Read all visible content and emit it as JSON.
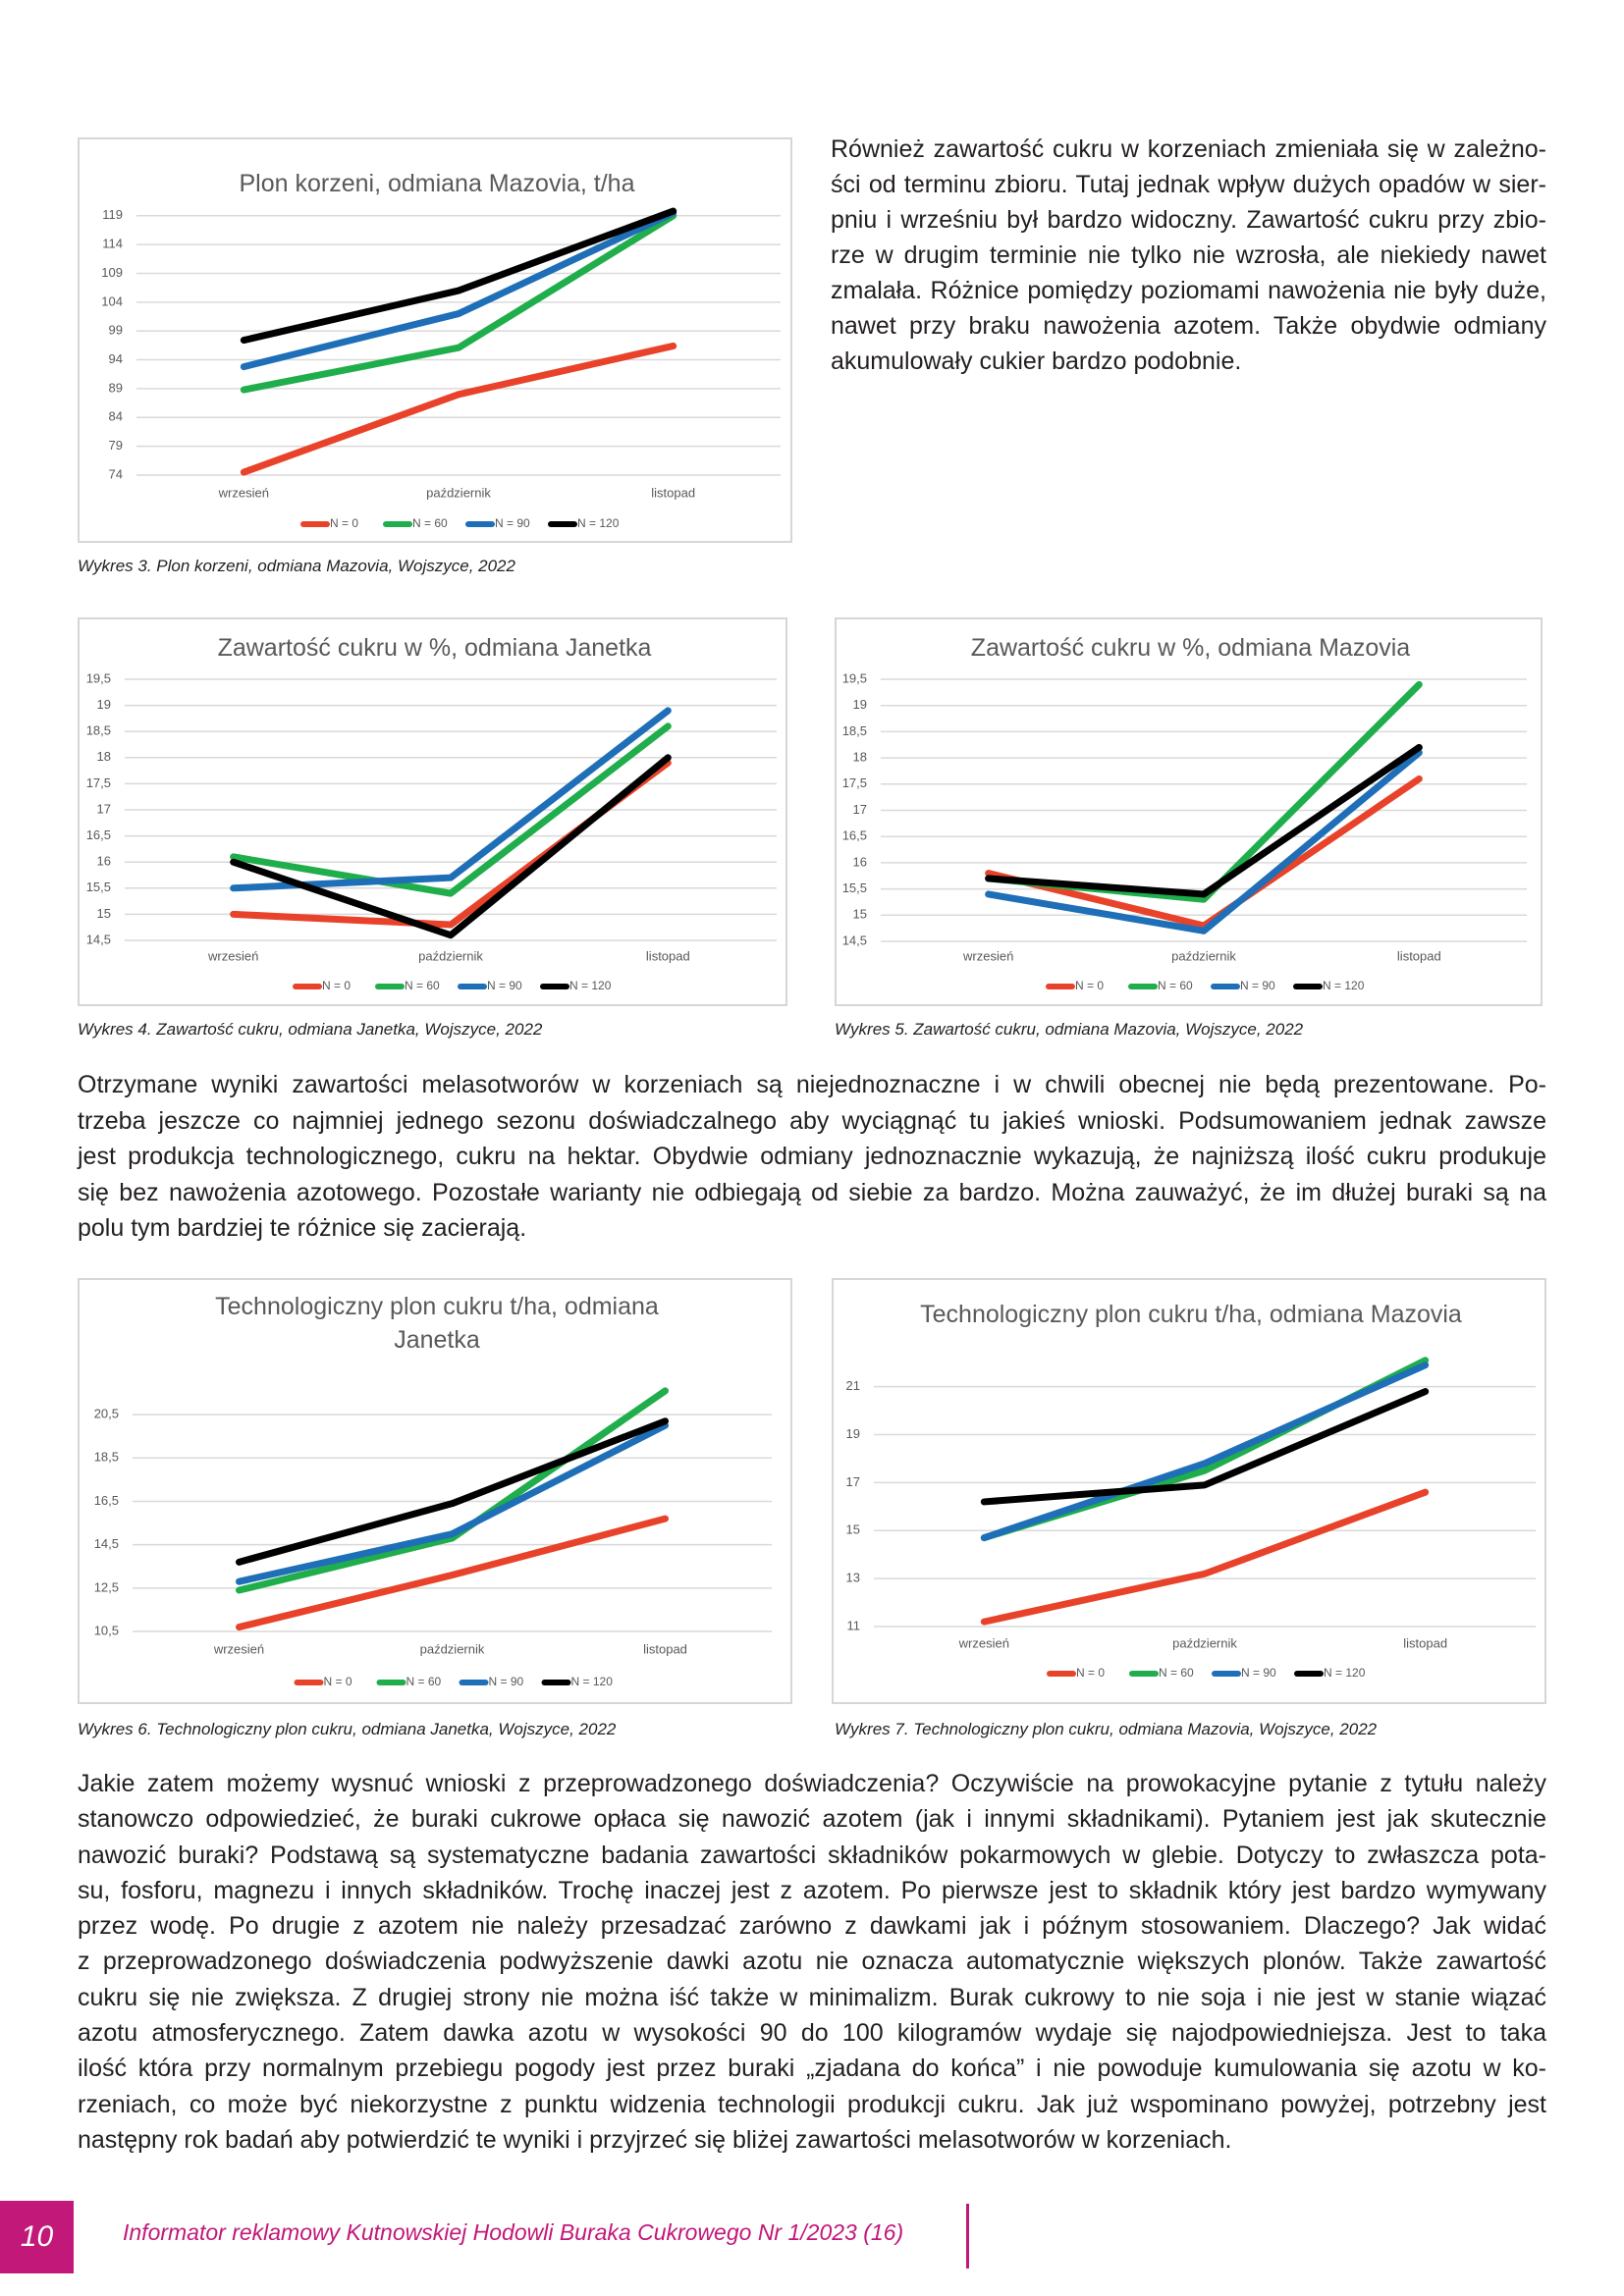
{
  "chart_data": [
    {
      "type": "line",
      "title": "Plon korzeni, odmiana Mazovia, t/ha",
      "categories": [
        "wrzesień",
        "październik",
        "listopad"
      ],
      "series": [
        {
          "name": "N = 0",
          "color": "#e8432a",
          "values": [
            74.5,
            88,
            96.4
          ]
        },
        {
          "name": "N = 60",
          "color": "#1fae4b",
          "values": [
            88.8,
            96.1,
            119
          ]
        },
        {
          "name": "N = 90",
          "color": "#1e6fb8",
          "values": [
            92.8,
            102,
            119.5
          ]
        },
        {
          "name": "N = 120",
          "color": "#000000",
          "values": [
            97.4,
            106,
            119.8
          ]
        }
      ],
      "ylim": [
        74,
        121
      ],
      "yticks": [
        74,
        79,
        84,
        89,
        94,
        99,
        104,
        109,
        114,
        119
      ],
      "grid": true,
      "legend": "bottom"
    },
    {
      "type": "line",
      "title": "Zawartość cukru w %, odmiana Janetka",
      "categories": [
        "wrzesień",
        "październik",
        "listopad"
      ],
      "series": [
        {
          "name": "N = 0",
          "color": "#e8432a",
          "values": [
            15.0,
            14.8,
            17.9
          ]
        },
        {
          "name": "N = 60",
          "color": "#1fae4b",
          "values": [
            16.1,
            15.4,
            18.6
          ]
        },
        {
          "name": "N = 90",
          "color": "#1e6fb8",
          "values": [
            15.5,
            15.7,
            18.9
          ]
        },
        {
          "name": "N = 120",
          "color": "#000000",
          "values": [
            16.0,
            14.6,
            18.0
          ]
        }
      ],
      "ylim": [
        14.5,
        19.5
      ],
      "yticks": [
        {
          "value": 14.5,
          "label": "14,5"
        },
        15,
        {
          "value": 15.5,
          "label": "15,5"
        },
        16,
        {
          "value": 16.5,
          "label": "16,5"
        },
        17,
        {
          "value": 17.5,
          "label": "17,5"
        },
        18,
        {
          "value": 18.5,
          "label": "18,5"
        },
        19,
        {
          "value": 19.5,
          "label": "19,5"
        }
      ],
      "grid": true,
      "legend": "bottom"
    },
    {
      "type": "line",
      "title": "Zawartość cukru w %, odmiana Mazovia",
      "categories": [
        "wrzesień",
        "październik",
        "listopad"
      ],
      "series": [
        {
          "name": "N = 0",
          "color": "#e8432a",
          "values": [
            15.8,
            14.8,
            17.6
          ]
        },
        {
          "name": "N = 60",
          "color": "#1fae4b",
          "values": [
            15.7,
            15.3,
            19.4
          ]
        },
        {
          "name": "N = 90",
          "color": "#1e6fb8",
          "values": [
            15.4,
            14.7,
            18.1
          ]
        },
        {
          "name": "N = 120",
          "color": "#000000",
          "values": [
            15.7,
            15.4,
            18.2
          ]
        }
      ],
      "ylim": [
        14.5,
        19.5
      ],
      "yticks": [
        {
          "value": 14.5,
          "label": "14,5"
        },
        15,
        {
          "value": 15.5,
          "label": "15,5"
        },
        16,
        {
          "value": 16.5,
          "label": "16,5"
        },
        17,
        {
          "value": 17.5,
          "label": "17,5"
        },
        18,
        {
          "value": 18.5,
          "label": "18,5"
        },
        19,
        {
          "value": 19.5,
          "label": "19,5"
        }
      ],
      "grid": true,
      "legend": "bottom"
    },
    {
      "type": "line",
      "title": "Technologiczny plon cukru t/ha, odmiana Janetka",
      "categories": [
        "wrzesień",
        "październik",
        "listopad"
      ],
      "series": [
        {
          "name": "N = 0",
          "color": "#e8432a",
          "values": [
            10.7,
            13.1,
            15.7
          ]
        },
        {
          "name": "N = 60",
          "color": "#1fae4b",
          "values": [
            12.4,
            14.8,
            21.6
          ]
        },
        {
          "name": "N = 90",
          "color": "#1e6fb8",
          "values": [
            12.8,
            15.0,
            20.0
          ]
        },
        {
          "name": "N = 120",
          "color": "#000000",
          "values": [
            13.7,
            16.4,
            20.2
          ]
        }
      ],
      "ylim": [
        10.5,
        22
      ],
      "yticks": [
        {
          "value": 10.5,
          "label": "10,5"
        },
        {
          "value": 12.5,
          "label": "12,5"
        },
        {
          "value": 14.5,
          "label": "14,5"
        },
        {
          "value": 16.5,
          "label": "16,5"
        },
        {
          "value": 18.5,
          "label": "18,5"
        },
        {
          "value": 20.5,
          "label": "20,5"
        }
      ],
      "grid": true,
      "legend": "bottom"
    },
    {
      "type": "line",
      "title": "Technologiczny plon cukru t/ha, odmiana Mazovia",
      "categories": [
        "wrzesień",
        "październik",
        "listopad"
      ],
      "series": [
        {
          "name": "N = 0",
          "color": "#e8432a",
          "values": [
            11.2,
            13.2,
            16.6
          ]
        },
        {
          "name": "N = 60",
          "color": "#1fae4b",
          "values": [
            14.7,
            17.5,
            22.1
          ]
        },
        {
          "name": "N = 90",
          "color": "#1e6fb8",
          "values": [
            14.7,
            17.8,
            21.9
          ]
        },
        {
          "name": "N = 120",
          "color": "#000000",
          "values": [
            16.2,
            16.9,
            20.8
          ]
        }
      ],
      "ylim": [
        11,
        22.5
      ],
      "yticks": [
        11,
        13,
        15,
        17,
        19,
        21
      ],
      "grid": true,
      "legend": "bottom"
    }
  ],
  "captions": [
    "Wykres 3. Plon korzeni, odmiana Mazovia, Wojszyce, 2022",
    "Wykres 4. Zawartość cukru, odmiana Janetka, Wojszyce, 2022",
    "Wykres 5. Zawartość cukru, odmiana Mazovia, Wojszyce, 2022",
    "Wykres 6. Technologiczny plon cukru, odmiana Janetka, Wojszyce, 2022",
    "Wykres 7. Technologiczny plon cukru, odmiana Mazovia, Wojszyce, 2022"
  ],
  "paragraphs": [
    {
      "lines": [
        "Również zawartość cukru w korzeniach zmieniała się w zależno-",
        "ści od terminu zbioru. Tutaj jednak wpływ dużych opadów w sier-",
        "pniu i wrześniu był bardzo widoczny. Zawartość cukru przy zbio-",
        "rze w drugim terminie nie tylko nie wzrosła, ale niekiedy nawet",
        "zmalała. Różnice pomiędzy poziomami nawożenia nie były duże,",
        "nawet przy braku nawożenia azotem. Także obydwie odmiany",
        "akumulowały cukier bardzo podobnie."
      ]
    },
    {
      "lines": [
        "Otrzymane wyniki zawartości melasotworów w korzeniach są niejednoznaczne i w chwili obecnej nie będą prezentowane. Po-",
        "trzeba jeszcze co najmniej jednego sezonu doświadczalnego aby wyciągnąć tu jakieś wnioski. Podsumowaniem jednak zawsze",
        "jest produkcja technologicznego, cukru na hektar. Obydwie odmiany jednoznacznie wykazują, że najniższą ilość cukru produkuje",
        "się bez nawożenia azotowego. Pozostałe warianty nie odbiegają od siebie za bardzo. Można zauważyć, że im dłużej buraki są na",
        "polu tym bardziej te różnice się zacierają."
      ]
    },
    {
      "lines": [
        "Jakie zatem możemy wysnuć wnioski z przeprowadzonego doświadczenia? Oczywiście na prowokacyjne pytanie z tytułu należy",
        "stanowczo odpowiedzieć, że buraki cukrowe opłaca się nawozić azotem (jak i innymi składnikami). Pytaniem jest jak skutecznie",
        "nawozić buraki? Podstawą są systematyczne badania zawartości składników pokarmowych w glebie. Dotyczy to zwłaszcza pota-",
        "su, fosforu, magnezu i innych składników. Trochę inaczej jest z azotem. Po pierwsze jest to składnik który jest bardzo wymywany",
        "przez wodę. Po drugie z azotem nie należy przesadzać zarówno z dawkami jak i późnym stosowaniem. Dlaczego? Jak widać",
        "z przeprowadzonego doświadczenia podwyższenie dawki azotu nie oznacza automatycznie większych plonów. Także zawartość",
        "cukru się nie zwiększa. Z drugiej strony nie można iść także w minimalizm. Burak cukrowy to nie soja i nie jest w stanie wiązać",
        "azotu atmosferycznego. Zatem dawka azotu w wysokości 90 do 100 kilogramów wydaje się najodpowiedniejsza. Jest to taka",
        "ilość która przy normalnym przebiegu pogody jest przez buraki „zjadana do końca” i nie powoduje kumulowania się azotu w ko-",
        "rzeniach, co może być niekorzystne z punktu widzenia technologii produkcji cukru. Jak już wspominano powyżej, potrzebny jest",
        "następny rok badań aby potwierdzić te wyniki i przyjrzeć się bliżej zawartości melasotworów w korzeniach."
      ]
    }
  ],
  "footer": {
    "page_number": "10",
    "text": "Informator reklamowy Kutnowskiej Hodowli Buraka Cukrowego Nr 1/2023 (16)"
  }
}
